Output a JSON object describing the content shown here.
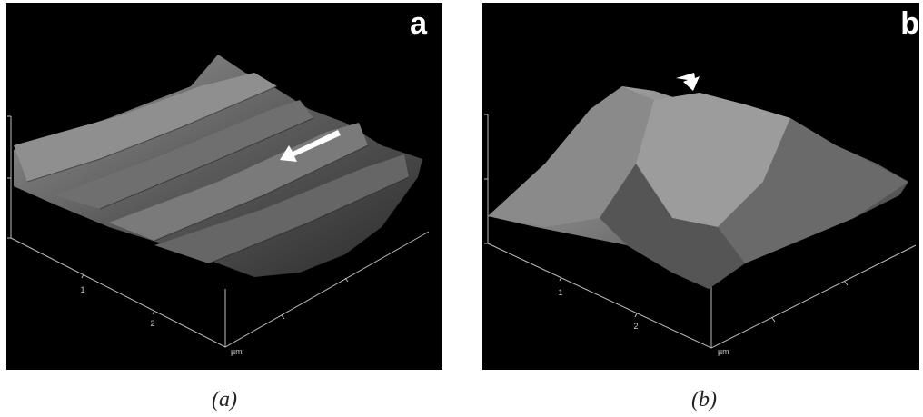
{
  "panels": [
    {
      "label": "a",
      "x_ticks": [
        "1",
        "2"
      ],
      "unit": "µm",
      "caption": "(a)"
    },
    {
      "label": "b",
      "x_ticks": [
        "1",
        "2"
      ],
      "unit": "µm",
      "caption": "(b)"
    }
  ]
}
